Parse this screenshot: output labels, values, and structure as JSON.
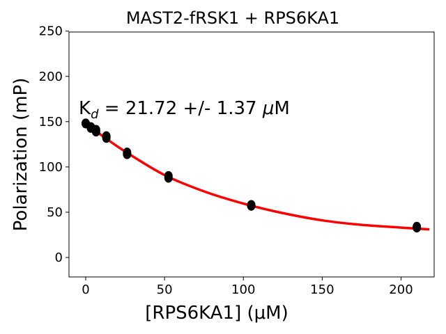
{
  "chart_data": {
    "type": "scatter",
    "title": "MAST2-fRSK1 + RPS6KA1",
    "xlabel": "[RPS6KA1] (μM)",
    "ylabel": "Polarization (mP)",
    "xlim": [
      -10.6,
      221
    ],
    "ylim": [
      -21.5,
      249
    ],
    "xticks": [
      0,
      50,
      100,
      150,
      200
    ],
    "yticks": [
      0,
      50,
      100,
      150,
      200,
      250
    ],
    "grid": false,
    "annotation": {
      "prefix": "K",
      "subscript": "d",
      "text": " = 21.72 +/- 1.37 ",
      "mu": "μ",
      "unit": "M"
    },
    "series": [
      {
        "name": "data",
        "color": "#000000",
        "x": [
          0,
          0,
          3.28,
          3.28,
          6.56,
          6.56,
          13.1,
          13.1,
          26.25,
          26.25,
          52.5,
          52.5,
          105,
          105,
          210,
          210
        ],
        "y": [
          148,
          148,
          144,
          143,
          141,
          139,
          134,
          132,
          116,
          114,
          90,
          88,
          58,
          57,
          34,
          33
        ]
      },
      {
        "name": "fit",
        "color": "#ff0000",
        "x": [
          0,
          10,
          25,
          50,
          75,
          100,
          125,
          150,
          175,
          200,
          218
        ],
        "y": [
          148,
          135,
          117,
          91,
          73,
          59.5,
          49,
          41,
          36,
          33,
          31
        ]
      }
    ]
  }
}
